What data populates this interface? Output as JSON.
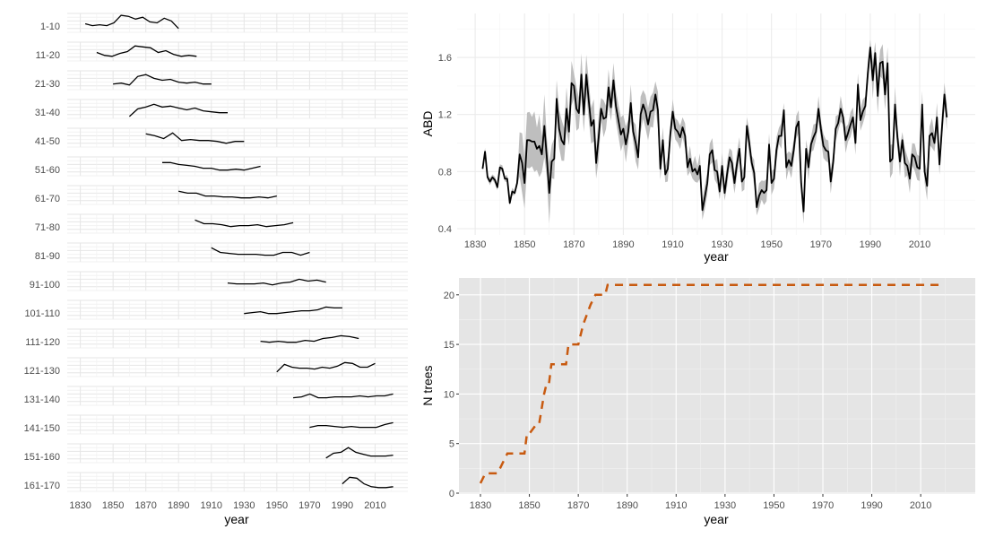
{
  "chart_data": [
    {
      "type": "line",
      "facet": "small-multiples",
      "xlabel": "year",
      "ylabel": "",
      "xlim": [
        1822,
        2030
      ],
      "xticks": [
        1830,
        1850,
        1870,
        1890,
        1910,
        1930,
        1950,
        1970,
        1990,
        2010
      ],
      "grid": true,
      "line_color": "#000000",
      "panels": [
        {
          "label": "1-10",
          "start": 1833,
          "end": 1890,
          "values": [
            0.45,
            0.35,
            0.4,
            0.35,
            0.5,
            0.9,
            0.85,
            0.7,
            0.8,
            0.55,
            0.5,
            0.75,
            0.6,
            0.2
          ]
        },
        {
          "label": "11-20",
          "start": 1840,
          "end": 1901,
          "values": [
            0.45,
            0.3,
            0.25,
            0.4,
            0.5,
            0.8,
            0.75,
            0.7,
            0.45,
            0.55,
            0.35,
            0.25,
            0.3,
            0.25
          ]
        },
        {
          "label": "21-30",
          "start": 1850,
          "end": 1910,
          "values": [
            0.3,
            0.35,
            0.25,
            0.7,
            0.8,
            0.6,
            0.5,
            0.55,
            0.4,
            0.35,
            0.4,
            0.3,
            0.3
          ]
        },
        {
          "label": "31-40",
          "start": 1860,
          "end": 1920,
          "values": [
            0.1,
            0.5,
            0.6,
            0.75,
            0.6,
            0.65,
            0.55,
            0.45,
            0.55,
            0.4,
            0.35,
            0.3,
            0.3
          ]
        },
        {
          "label": "41-50",
          "start": 1870,
          "end": 1930,
          "values": [
            0.7,
            0.6,
            0.45,
            0.75,
            0.35,
            0.4,
            0.35,
            0.35,
            0.3,
            0.2,
            0.3,
            0.3
          ]
        },
        {
          "label": "51-60",
          "start": 1880,
          "end": 1940,
          "values": [
            0.7,
            0.7,
            0.6,
            0.55,
            0.5,
            0.4,
            0.4,
            0.3,
            0.3,
            0.35,
            0.3,
            0.4,
            0.5
          ]
        },
        {
          "label": "61-70",
          "start": 1890,
          "end": 1950,
          "values": [
            0.7,
            0.6,
            0.6,
            0.45,
            0.45,
            0.4,
            0.4,
            0.35,
            0.35,
            0.4,
            0.35,
            0.45
          ]
        },
        {
          "label": "71-80",
          "start": 1900,
          "end": 1960,
          "values": [
            0.7,
            0.5,
            0.5,
            0.45,
            0.35,
            0.4,
            0.4,
            0.45,
            0.35,
            0.4,
            0.45,
            0.55
          ]
        },
        {
          "label": "81-90",
          "start": 1910,
          "end": 1970,
          "values": [
            0.75,
            0.5,
            0.45,
            0.4,
            0.4,
            0.4,
            0.35,
            0.35,
            0.5,
            0.5,
            0.35,
            0.5
          ]
        },
        {
          "label": "91-100",
          "start": 1920,
          "end": 1980,
          "values": [
            0.4,
            0.35,
            0.35,
            0.35,
            0.4,
            0.3,
            0.4,
            0.45,
            0.6,
            0.5,
            0.55,
            0.45
          ]
        },
        {
          "label": "101-110",
          "start": 1930,
          "end": 1990,
          "values": [
            0.3,
            0.35,
            0.4,
            0.3,
            0.3,
            0.35,
            0.4,
            0.45,
            0.45,
            0.5,
            0.65,
            0.6,
            0.6
          ]
        },
        {
          "label": "111-120",
          "start": 1940,
          "end": 2000,
          "values": [
            0.35,
            0.3,
            0.35,
            0.3,
            0.3,
            0.4,
            0.35,
            0.5,
            0.55,
            0.65,
            0.6,
            0.5
          ]
        },
        {
          "label": "121-130",
          "start": 1950,
          "end": 2010,
          "values": [
            0.25,
            0.65,
            0.5,
            0.45,
            0.45,
            0.4,
            0.5,
            0.45,
            0.55,
            0.75,
            0.7,
            0.5,
            0.5,
            0.7
          ]
        },
        {
          "label": "131-140",
          "start": 1960,
          "end": 2021,
          "values": [
            0.4,
            0.45,
            0.6,
            0.4,
            0.4,
            0.45,
            0.45,
            0.45,
            0.5,
            0.45,
            0.5,
            0.5,
            0.6
          ]
        },
        {
          "label": "141-150",
          "start": 1970,
          "end": 2021,
          "values": [
            0.35,
            0.45,
            0.45,
            0.4,
            0.35,
            0.4,
            0.35,
            0.35,
            0.35,
            0.5,
            0.6
          ]
        },
        {
          "label": "151-160",
          "start": 1980,
          "end": 2021,
          "values": [
            0.25,
            0.5,
            0.55,
            0.8,
            0.55,
            0.45,
            0.35,
            0.35,
            0.35,
            0.4
          ]
        },
        {
          "label": "161-170",
          "start": 1990,
          "end": 2021,
          "values": [
            0.4,
            0.75,
            0.7,
            0.4,
            0.25,
            0.2,
            0.2,
            0.25
          ]
        }
      ]
    },
    {
      "type": "line",
      "xlabel": "year",
      "ylabel": "ABD",
      "xlim": [
        1822.7,
        2032.5
      ],
      "ylim": [
        0.356,
        1.908
      ],
      "xticks": [
        1830,
        1850,
        1870,
        1890,
        1910,
        1930,
        1950,
        1970,
        1990,
        2010
      ],
      "yticks": [
        0.4,
        0.8,
        1.2,
        1.6
      ],
      "ytick_labels": [
        "0.4",
        "0.8",
        "1.2",
        "1.6"
      ],
      "grid": true,
      "line_color": "#000000",
      "ribbon_color": "#bebebe",
      "x_start": 1833,
      "values": [
        0.82,
        0.94,
        0.76,
        0.73,
        0.76,
        0.74,
        0.69,
        0.83,
        0.82,
        0.75,
        0.75,
        0.58,
        0.66,
        0.65,
        0.72,
        0.92,
        0.86,
        0.72,
        1.02,
        1.02,
        1.01,
        1.01,
        0.96,
        0.98,
        0.92,
        1.12,
        0.9,
        0.65,
        0.87,
        0.89,
        1.31,
        1.1,
        1.02,
        0.99,
        1.24,
        1.08,
        1.42,
        1.4,
        1.24,
        1.21,
        1.48,
        1.2,
        1.48,
        1.3,
        1.12,
        1.16,
        0.86,
        1.04,
        1.24,
        1.17,
        1.18,
        1.39,
        1.25,
        1.44,
        1.26,
        1.16,
        1.06,
        1.1,
        0.99,
        1.08,
        1.28,
        1.08,
        1.0,
        0.9,
        1.2,
        1.27,
        1.22,
        1.13,
        1.22,
        1.23,
        1.34,
        1.23,
        0.82,
        1.02,
        0.78,
        0.82,
        1.06,
        1.22,
        1.1,
        1.08,
        1.04,
        1.11,
        1.05,
        0.83,
        0.89,
        0.8,
        0.82,
        0.78,
        0.84,
        0.53,
        0.62,
        0.72,
        0.92,
        0.95,
        0.81,
        0.8,
        0.66,
        0.84,
        0.65,
        0.78,
        0.9,
        0.86,
        0.72,
        0.85,
        0.96,
        0.73,
        0.76,
        1.12,
        1.0,
        0.86,
        0.79,
        0.55,
        0.63,
        0.67,
        0.65,
        0.67,
        0.99,
        0.72,
        0.75,
        0.95,
        1.05,
        1.05,
        1.23,
        0.83,
        0.88,
        0.84,
        0.95,
        1.11,
        1.15,
        0.72,
        0.52,
        0.96,
        0.83,
        0.99,
        1.04,
        1.08,
        1.24,
        1.1,
        0.98,
        0.95,
        0.94,
        0.73,
        0.87,
        1.1,
        1.14,
        1.24,
        1.18,
        1.02,
        1.07,
        1.13,
        1.18,
        1.0,
        1.41,
        1.16,
        1.22,
        1.26,
        1.49,
        1.67,
        1.44,
        1.63,
        1.33,
        1.56,
        1.57,
        1.34,
        1.56,
        0.87,
        0.89,
        1.27,
        1.04,
        0.87,
        1.02,
        0.86,
        0.84,
        0.75,
        0.92,
        0.9,
        0.83,
        0.82,
        1.27,
        0.8,
        0.7,
        1.05,
        1.07,
        1.0,
        1.18,
        0.85,
        1.1,
        1.34,
        1.18
      ],
      "ribbon_halfwidth": [
        {
          "from": 1833,
          "to": 1847,
          "halfwidth": 0.02
        },
        {
          "from": 1848,
          "to": 1860,
          "halfwidth": 0.17
        },
        {
          "from": 1861,
          "to": 1880,
          "halfwidth": 0.12
        },
        {
          "from": 1881,
          "to": 1905,
          "halfwidth": 0.1
        },
        {
          "from": 1906,
          "to": 1990,
          "halfwidth": 0.07
        },
        {
          "from": 1991,
          "to": 2000,
          "halfwidth": 0.1
        },
        {
          "from": 2001,
          "to": 2021,
          "halfwidth": 0.08
        }
      ]
    },
    {
      "type": "line",
      "xlabel": "year",
      "ylabel": "N trees",
      "xlim": [
        1821.2,
        2032.3
      ],
      "ylim": [
        0,
        21.7
      ],
      "xticks": [
        1830,
        1850,
        1870,
        1890,
        1910,
        1930,
        1950,
        1970,
        1990,
        2010
      ],
      "yticks": [
        0,
        5,
        10,
        15,
        20
      ],
      "ytick_labels": [
        "0",
        "5",
        "10",
        "15",
        "20"
      ],
      "grid": true,
      "background": "#e5e5e5",
      "line_color": "#c85a10",
      "line_style": "dashed",
      "x": [
        1830,
        1832,
        1835,
        1837,
        1841,
        1846,
        1848,
        1849,
        1850,
        1853,
        1854,
        1856,
        1857,
        1858,
        1859,
        1860,
        1865,
        1866,
        1869,
        1870,
        1872,
        1875,
        1877,
        1879,
        1881,
        1882,
        2018
      ],
      "y": [
        1,
        2,
        2,
        2,
        4,
        4,
        4,
        6,
        6,
        7,
        7,
        10,
        11,
        11,
        13,
        13,
        13,
        15,
        15,
        15,
        17,
        19,
        20,
        20,
        20,
        21,
        21
      ]
    }
  ]
}
